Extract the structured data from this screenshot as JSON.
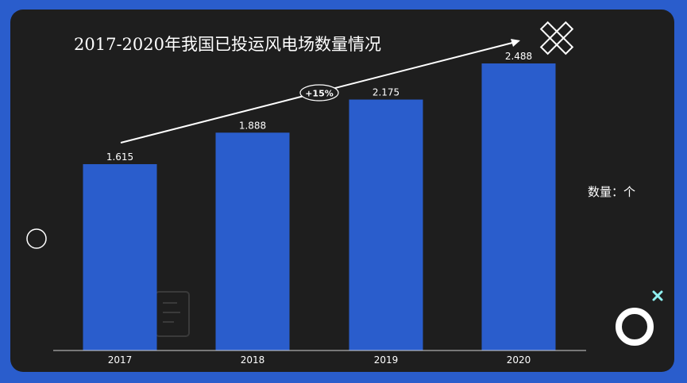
{
  "chart_data": {
    "type": "bar",
    "title": "2017-2020年我国已投运风电场数量情况",
    "unit_label": "数量：个",
    "categories": [
      "2017",
      "2018",
      "2019",
      "2020"
    ],
    "values": [
      1.615,
      1.888,
      2.175,
      2.488
    ],
    "value_labels": [
      "1.615",
      "1.888",
      "2.175",
      "2.488"
    ],
    "ylim": [
      0,
      2.488
    ],
    "grid": false,
    "trend_annotation": "+15%"
  },
  "colors": {
    "page_background": "#2a5dcc",
    "panel_background": "#1e1e1e",
    "bar": "#2a5dcc",
    "text": "#ffffff",
    "accent_cyan": "#8ff0f0"
  },
  "icons": [
    "cross-icon",
    "circle-icon",
    "ring-icon",
    "small-x-icon",
    "document-icon"
  ]
}
